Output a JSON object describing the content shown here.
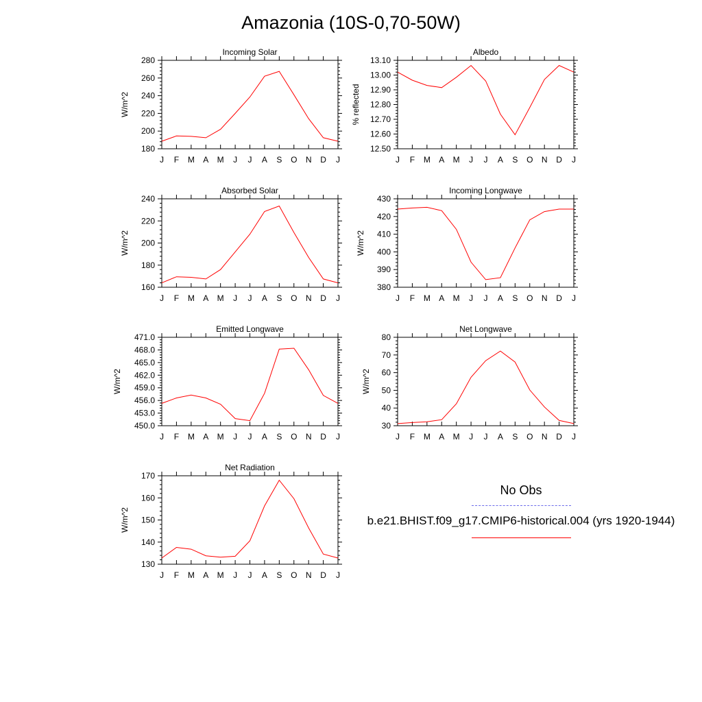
{
  "title": "Amazonia (10S-0,70-50W)",
  "legend": {
    "obs_label": "No Obs",
    "model_label": "b.e21.BHIST.f09_g17.CMIP6-historical.004 (yrs 1920-1944)",
    "obs_color": "#6b6bea",
    "model_color": "#ff0000"
  },
  "chart_data": [
    {
      "type": "line",
      "title": "Incoming Solar",
      "ylabel": "W/m^2",
      "categories": [
        "J",
        "F",
        "M",
        "A",
        "M",
        "J",
        "J",
        "A",
        "S",
        "O",
        "N",
        "D",
        "J"
      ],
      "ylim": [
        180,
        280
      ],
      "yticks": [
        180,
        200,
        220,
        240,
        260,
        280
      ],
      "ytick_labels": [
        "180",
        "200",
        "220",
        "240",
        "260",
        "280"
      ],
      "series": [
        {
          "color": "#ff0000",
          "values": [
            188.5,
            194.5,
            194,
            192.5,
            202,
            220,
            238.5,
            262,
            267.5,
            241,
            214,
            192.5,
            188.5
          ]
        }
      ]
    },
    {
      "type": "line",
      "title": "Albedo",
      "ylabel": "% reflected",
      "categories": [
        "J",
        "F",
        "M",
        "A",
        "M",
        "J",
        "J",
        "A",
        "S",
        "O",
        "N",
        "D",
        "J"
      ],
      "ylim": [
        12.5,
        13.1
      ],
      "yticks": [
        12.5,
        12.6,
        12.7,
        12.8,
        12.9,
        13.0,
        13.1
      ],
      "ytick_labels": [
        "12.50",
        "12.60",
        "12.70",
        "12.80",
        "12.90",
        "13.00",
        "13.10"
      ],
      "series": [
        {
          "color": "#ff0000",
          "values": [
            13.02,
            12.965,
            12.93,
            12.915,
            12.985,
            13.065,
            12.96,
            12.735,
            12.595,
            12.78,
            12.97,
            13.065,
            13.02
          ]
        }
      ]
    },
    {
      "type": "line",
      "title": "Absorbed Solar",
      "ylabel": "W/m^2",
      "categories": [
        "J",
        "F",
        "M",
        "A",
        "M",
        "J",
        "J",
        "A",
        "S",
        "O",
        "N",
        "D",
        "J"
      ],
      "ylim": [
        160,
        240
      ],
      "yticks": [
        160,
        180,
        200,
        220,
        240
      ],
      "ytick_labels": [
        "160",
        "180",
        "200",
        "220",
        "240"
      ],
      "series": [
        {
          "color": "#ff0000",
          "values": [
            164,
            169.5,
            169,
            167.5,
            176,
            192,
            208,
            228.5,
            233.5,
            209.5,
            187,
            167.5,
            164
          ]
        }
      ]
    },
    {
      "type": "line",
      "title": "Incoming Longwave",
      "ylabel": "W/m^2",
      "categories": [
        "J",
        "F",
        "M",
        "A",
        "M",
        "J",
        "J",
        "A",
        "S",
        "O",
        "N",
        "D",
        "J"
      ],
      "ylim": [
        380,
        430
      ],
      "yticks": [
        380,
        390,
        400,
        410,
        420,
        430
      ],
      "ytick_labels": [
        "380",
        "390",
        "400",
        "410",
        "420",
        "430"
      ],
      "series": [
        {
          "color": "#ff0000",
          "values": [
            424.2,
            424.8,
            425.2,
            423.3,
            412.7,
            394.2,
            384.3,
            385.4,
            402.2,
            418.1,
            422.8,
            424.2,
            424.2
          ]
        }
      ]
    },
    {
      "type": "line",
      "title": "Emitted Longwave",
      "ylabel": "W/m^2",
      "categories": [
        "J",
        "F",
        "M",
        "A",
        "M",
        "J",
        "J",
        "A",
        "S",
        "O",
        "N",
        "D",
        "J"
      ],
      "ylim": [
        450,
        471
      ],
      "yticks": [
        450,
        453,
        456,
        459,
        462,
        465,
        468,
        471
      ],
      "ytick_labels": [
        "450.0",
        "453.0",
        "456.0",
        "459.0",
        "462.0",
        "465.0",
        "468.0",
        "471.0"
      ],
      "series": [
        {
          "color": "#ff0000",
          "values": [
            455.3,
            456.6,
            457.3,
            456.6,
            455.1,
            451.7,
            451.2,
            457.7,
            468.2,
            468.4,
            463.3,
            457.2,
            455.3
          ]
        }
      ]
    },
    {
      "type": "line",
      "title": "Net Longwave",
      "ylabel": "W/m^2",
      "categories": [
        "J",
        "F",
        "M",
        "A",
        "M",
        "J",
        "J",
        "A",
        "S",
        "O",
        "N",
        "D",
        "J"
      ],
      "ylim": [
        30,
        80
      ],
      "yticks": [
        30,
        40,
        50,
        60,
        70,
        80
      ],
      "ytick_labels": [
        "30",
        "40",
        "50",
        "60",
        "70",
        "80"
      ],
      "series": [
        {
          "color": "#ff0000",
          "values": [
            31.2,
            31.8,
            32.2,
            33.4,
            42.4,
            57.4,
            66.8,
            72.2,
            66.0,
            50.2,
            40.6,
            33.0,
            31.2
          ]
        }
      ]
    },
    {
      "type": "line",
      "title": "Net Radiation",
      "ylabel": "W/m^2",
      "categories": [
        "J",
        "F",
        "M",
        "A",
        "M",
        "J",
        "J",
        "A",
        "S",
        "O",
        "N",
        "D",
        "J"
      ],
      "ylim": [
        130,
        170
      ],
      "yticks": [
        130,
        140,
        150,
        160,
        170
      ],
      "ytick_labels": [
        "130",
        "140",
        "150",
        "160",
        "170"
      ],
      "series": [
        {
          "color": "#ff0000",
          "values": [
            132.8,
            137.6,
            136.8,
            133.8,
            133.2,
            133.6,
            140.6,
            156.4,
            168.0,
            159.6,
            146.4,
            134.6,
            132.8
          ]
        }
      ]
    }
  ]
}
